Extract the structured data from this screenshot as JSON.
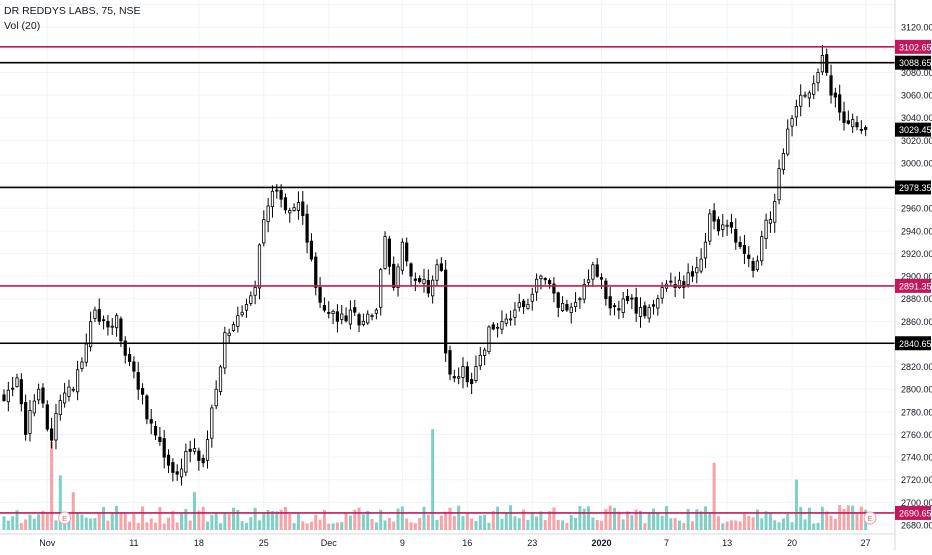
{
  "legend": {
    "title": "DR REDDYS LABS, 75, NSE",
    "volume": "Vol (20)"
  },
  "colors": {
    "candle": "#000000",
    "red_level": "#c2185b",
    "black_level": "#000000",
    "vol_up": "#7fcfc4",
    "vol_down": "#f5a3a8",
    "grid": "#f0f3f8",
    "axis_text": "#131722",
    "badge_text": "#ffffff"
  },
  "chart_data": {
    "type": "candlestick",
    "ylim": [
      2680,
      3145
    ],
    "y_ticks": [
      2680,
      2700,
      2720,
      2740,
      2760,
      2780,
      2800,
      2820,
      2840,
      2860,
      2880,
      2900,
      2920,
      2940,
      2960,
      2980,
      3000,
      3020,
      3040,
      3060,
      3080,
      3100,
      3120,
      3140
    ],
    "y_tick_labels": [
      "2680.00",
      "2700.00",
      "2720.00",
      "2740.00",
      "2760.00",
      "2780.00",
      "2800.00",
      "2820.00",
      "2840.00",
      "2860.00",
      "2880.00",
      "2900.00",
      "2920.00",
      "2940.00",
      "2960.00",
      "2980.00",
      "3000.00",
      "3020.00",
      "3040.00",
      "3060.00",
      "3080.00",
      "3100.00",
      "3120.00",
      "3140.00"
    ],
    "x_labels": [
      {
        "label": "Nov",
        "bar": 10
      },
      {
        "label": "11",
        "bar": 30
      },
      {
        "label": "18",
        "bar": 45
      },
      {
        "label": "25",
        "bar": 60
      },
      {
        "label": "Dec",
        "bar": 75
      },
      {
        "label": "9",
        "bar": 92
      },
      {
        "label": "16",
        "bar": 107
      },
      {
        "label": "23",
        "bar": 122
      },
      {
        "label": "2020",
        "bar": 138
      },
      {
        "label": "7",
        "bar": 153
      },
      {
        "label": "13",
        "bar": 167
      },
      {
        "label": "20",
        "bar": 182
      },
      {
        "label": "27",
        "bar": 199
      }
    ],
    "levels": [
      {
        "value": 3102.65,
        "label": "3102.65",
        "color": "red"
      },
      {
        "value": 3088.65,
        "label": "3088.65",
        "color": "black"
      },
      {
        "value": 2978.35,
        "label": "2978.35",
        "color": "black"
      },
      {
        "value": 2891.35,
        "label": "2891.35",
        "color": "red"
      },
      {
        "value": 2840.65,
        "label": "2840.65",
        "color": "black"
      },
      {
        "value": 2690.65,
        "label": "2690.65",
        "color": "red"
      }
    ],
    "last_price": {
      "value": 3029.45,
      "label": "3029.45"
    },
    "anchors": [
      [
        0,
        2790
      ],
      [
        3,
        2810
      ],
      [
        5,
        2760
      ],
      [
        8,
        2800
      ],
      [
        11,
        2755
      ],
      [
        13,
        2790
      ],
      [
        16,
        2800
      ],
      [
        19,
        2840
      ],
      [
        21,
        2870
      ],
      [
        24,
        2855
      ],
      [
        26,
        2865
      ],
      [
        28,
        2830
      ],
      [
        31,
        2800
      ],
      [
        34,
        2770
      ],
      [
        37,
        2740
      ],
      [
        40,
        2725
      ],
      [
        43,
        2745
      ],
      [
        46,
        2735
      ],
      [
        49,
        2800
      ],
      [
        51,
        2850
      ],
      [
        54,
        2865
      ],
      [
        56,
        2875
      ],
      [
        58,
        2890
      ],
      [
        60,
        2950
      ],
      [
        62,
        2975
      ],
      [
        64,
        2968
      ],
      [
        66,
        2958
      ],
      [
        68,
        2965
      ],
      [
        70,
        2930
      ],
      [
        72,
        2890
      ],
      [
        74,
        2870
      ],
      [
        77,
        2860
      ],
      [
        80,
        2870
      ],
      [
        83,
        2860
      ],
      [
        86,
        2870
      ],
      [
        88,
        2935
      ],
      [
        90,
        2890
      ],
      [
        92,
        2930
      ],
      [
        94,
        2900
      ],
      [
        96,
        2895
      ],
      [
        98,
        2885
      ],
      [
        100,
        2910
      ],
      [
        101,
        2905
      ],
      [
        102,
        2832
      ],
      [
        104,
        2810
      ],
      [
        106,
        2820
      ],
      [
        108,
        2805
      ],
      [
        110,
        2830
      ],
      [
        112,
        2855
      ],
      [
        115,
        2860
      ],
      [
        118,
        2870
      ],
      [
        121,
        2875
      ],
      [
        124,
        2900
      ],
      [
        127,
        2885
      ],
      [
        130,
        2870
      ],
      [
        133,
        2880
      ],
      [
        136,
        2910
      ],
      [
        139,
        2880
      ],
      [
        142,
        2870
      ],
      [
        145,
        2880
      ],
      [
        148,
        2865
      ],
      [
        151,
        2880
      ],
      [
        154,
        2895
      ],
      [
        157,
        2890
      ],
      [
        159,
        2900
      ],
      [
        161,
        2915
      ],
      [
        163,
        2955
      ],
      [
        165,
        2940
      ],
      [
        167,
        2945
      ],
      [
        169,
        2930
      ],
      [
        171,
        2920
      ],
      [
        173,
        2905
      ],
      [
        175,
        2935
      ],
      [
        177,
        2950
      ],
      [
        179,
        2995
      ],
      [
        181,
        3030
      ],
      [
        183,
        3050
      ],
      [
        185,
        3060
      ],
      [
        187,
        3070
      ],
      [
        188,
        3080
      ],
      [
        189,
        3095
      ],
      [
        190,
        3080
      ],
      [
        191,
        3060
      ],
      [
        193,
        3045
      ],
      [
        195,
        3035
      ],
      [
        197,
        3032
      ],
      [
        199,
        3029.45
      ]
    ],
    "volume_spikes": [
      {
        "bar": 11,
        "value": 21
      },
      {
        "bar": 13,
        "value": 13
      },
      {
        "bar": 16,
        "value": 9
      },
      {
        "bar": 44,
        "value": 9
      },
      {
        "bar": 99,
        "value": 24
      },
      {
        "bar": 164,
        "value": 16
      },
      {
        "bar": 183,
        "value": 12
      }
    ]
  }
}
